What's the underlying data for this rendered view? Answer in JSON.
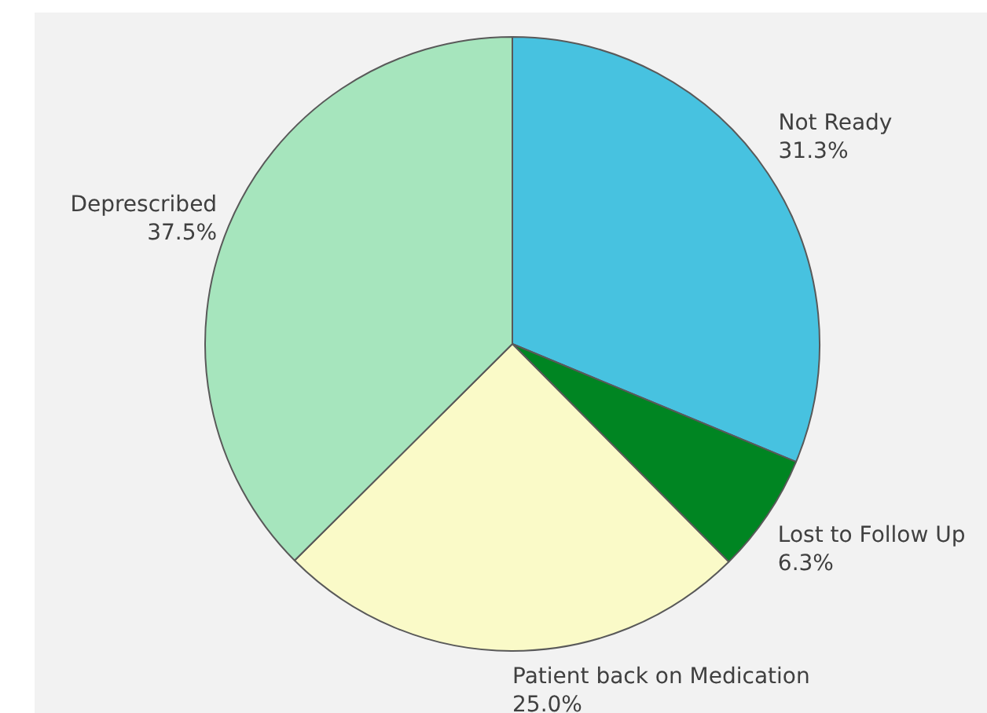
{
  "chart_data": {
    "type": "pie",
    "categories": [
      "Not Ready",
      "Lost to Follow Up",
      "Patient back on Medication",
      "Deprescribed"
    ],
    "values": [
      31.3,
      6.3,
      25.0,
      37.5
    ],
    "colors": [
      "#47c2e0",
      "#008522",
      "#fafac8",
      "#a6e5bd"
    ],
    "value_labels": [
      "31.3%",
      "6.3%",
      "25.0%",
      "37.5%"
    ],
    "legend": false
  }
}
